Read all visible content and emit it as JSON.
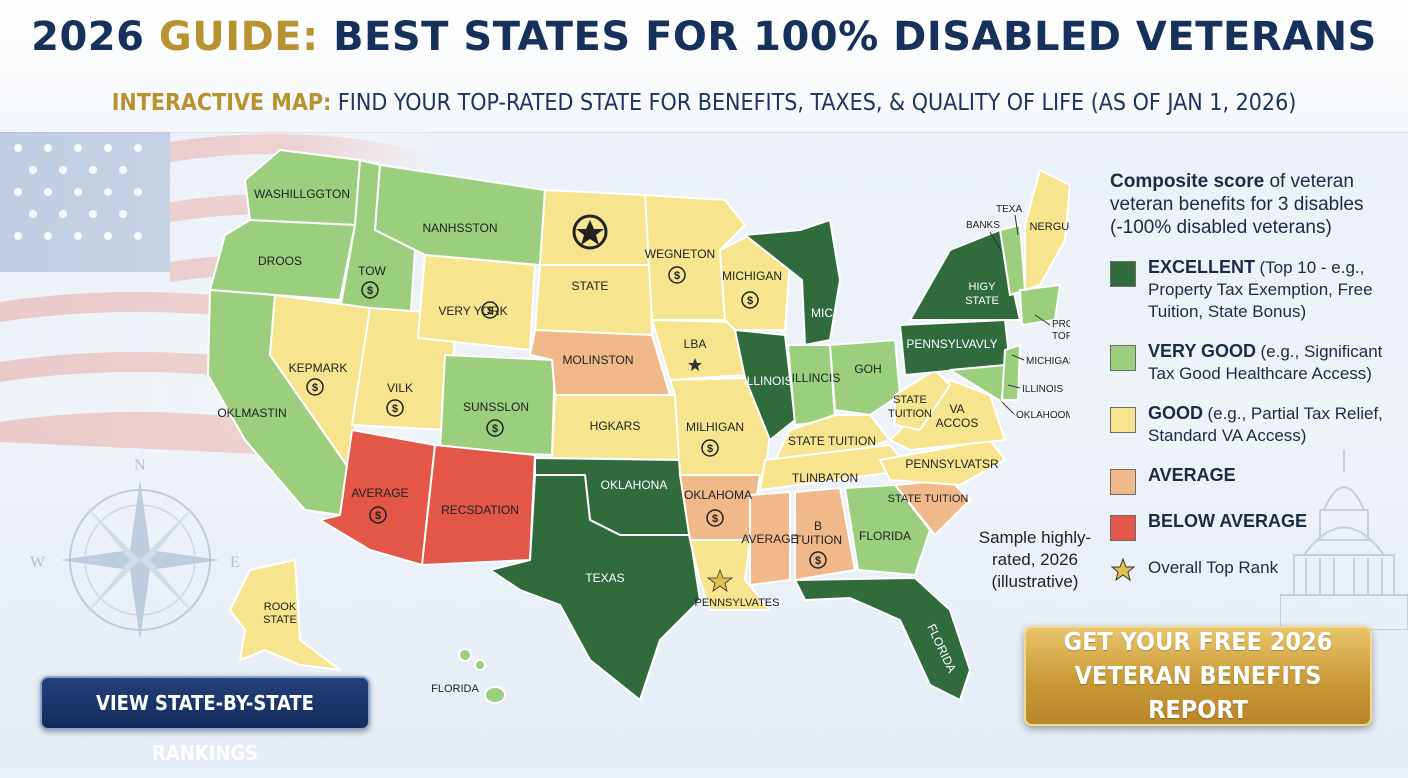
{
  "header": {
    "title_lead": "2026",
    "title_gold": "GUIDE:",
    "title_rest": "BEST STATES FOR 100% DISABLED VETERANS",
    "subtitle_gold": "INTERACTIVE MAP:",
    "subtitle_rest": "FIND YOUR TOP-RATED STATE FOR BENEFITS, TAXES, & QUALITY OF LIFE (AS OF JAN 1, 2026)"
  },
  "colors": {
    "excellent": "#2f6b3d",
    "very_good": "#9bcf7d",
    "good": "#f6e48f",
    "average": "#f1b98a",
    "below_average": "#e35748"
  },
  "map_labels": {
    "washington": "WASHILLGGTON",
    "oregon": "DROOS",
    "california": "OKLMASTIN",
    "idaho": "TOW",
    "montana": "NANHSSTON",
    "nevada": "KEPMARK",
    "utah": "VILK",
    "wyoming": "VERY YORK",
    "colorado": "SUNSSLON",
    "arizona": "AVERAGE",
    "new_mexico": "RECSDATION",
    "south_dakota": "STATE",
    "nebraska": "MOLINSTON",
    "kansas": "HGKARS",
    "oklahoma": "OKLAHONA",
    "texas": "TEXAS",
    "minnesota": "WEGNETON",
    "iowa": "LBA",
    "missouri": "MILHIGAN",
    "arkansas": "OKLAHOMA",
    "louisiana": "PENNSYLVATES",
    "wisconsin": "MICHIGAN",
    "illinois": "ILLINOIS",
    "michigan": "MIC",
    "indiana": "ILLINCIS",
    "ohio": "GOH",
    "kentucky": "STATE TUITION",
    "tennessee": "TLINBATON",
    "mississippi": "AVERAGE",
    "alabama_1": "B",
    "alabama_2": "TUITION",
    "georgia": "FLORIDA",
    "florida": "FLORIDA",
    "south_carolina": "STATE TUITION",
    "north_carolina": "PENNSYLVATSR",
    "virginia_1": "VA",
    "virginia_2": "ACCOS",
    "west_virginia_1": "STATE",
    "west_virginia_2": "TUITION",
    "pennsylvania": "PENNSYLVAVLY",
    "new_york_1": "HIGY",
    "new_york_2": "STATE",
    "maine": "NERGUS",
    "alaska_1": "ROOK",
    "alaska_2": "STATE",
    "hawaii": "FLORIDA",
    "ne_callout_banks": "BANKS",
    "ne_callout_texa": "TEXA",
    "ne_callout_property_1": "PROPEPT VY",
    "ne_callout_property_2": "TOP RANKS",
    "ne_callout_michigas": "MICHIGAS",
    "ne_callout_illinois": "ILLINOIS",
    "ne_callout_oklahoom": "OKLAHOOM"
  },
  "legend": {
    "title_bold": "Composite score",
    "title_rest": "of veteran veteran benefits for 3 disables (-100% disabled veterans)",
    "items": [
      {
        "label": "EXCELLENT",
        "desc": "(Top 10 - e.g., Property Tax Exemption, Free Tuition, State Bonus)"
      },
      {
        "label": "VERY GOOD",
        "desc": "(e.g., Significant Tax Good Healthcare  Access)"
      },
      {
        "label": "GOOD",
        "desc": "(e.g., Partial Tax Relief, Standard VA Access)"
      },
      {
        "label": "AVERAGE",
        "desc": ""
      },
      {
        "label": "BELOW AVERAGE",
        "desc": ""
      }
    ],
    "top_rank": "Overall Top Rank"
  },
  "sample_note": "Sample highly-rated, 2026 (illustrative)",
  "buttons": {
    "rankings": "VIEW STATE-BY-STATE RANKINGS",
    "report_line1": "GET YOUR FREE 2026",
    "report_line2": "VETERAN BENEFITS REPORT"
  },
  "compass": {
    "n": "N",
    "w": "W",
    "e": "E"
  }
}
